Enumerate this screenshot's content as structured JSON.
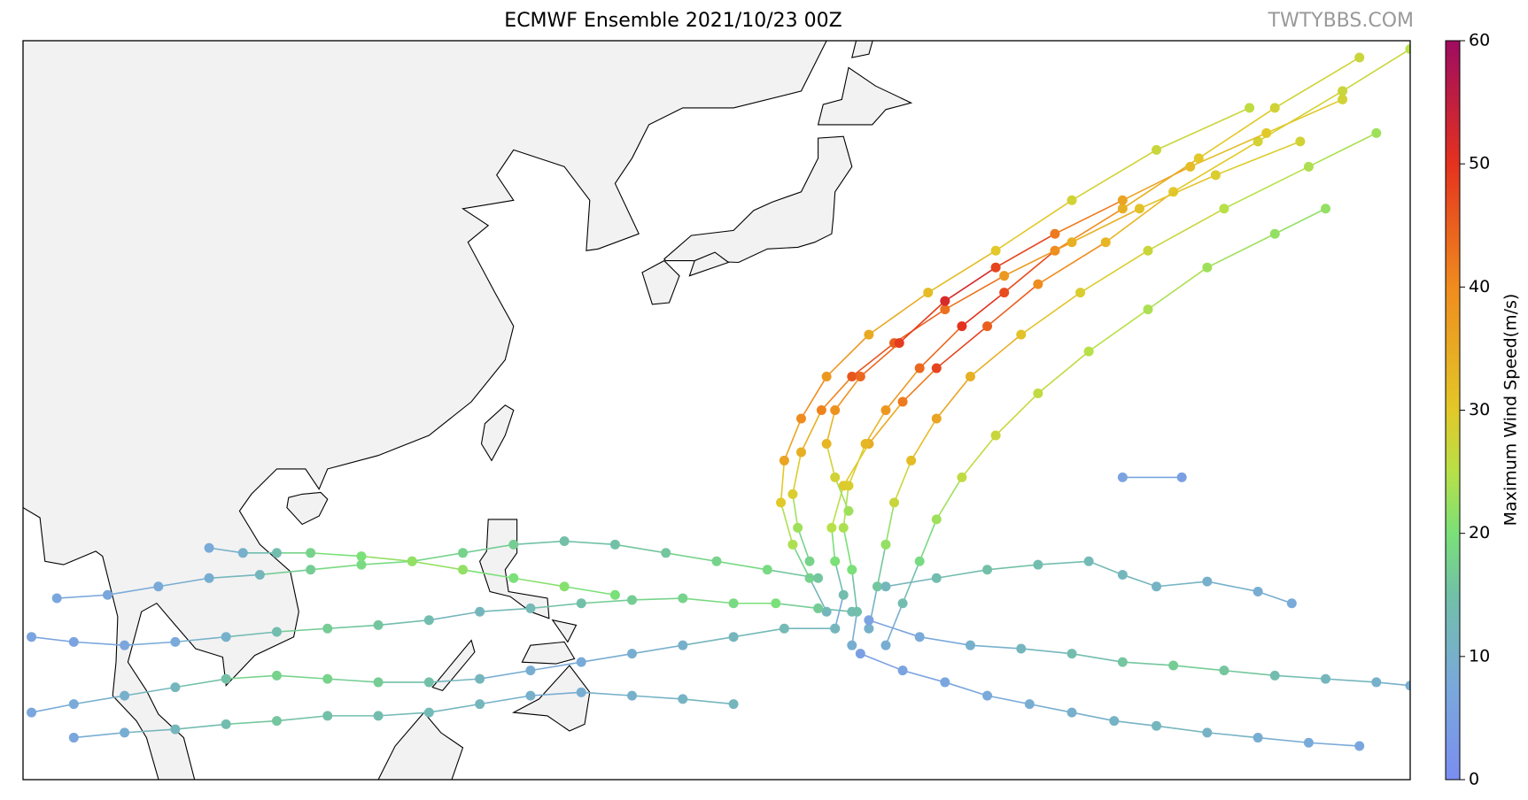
{
  "title": "ECMWF Ensemble 2021/10/23 00Z",
  "watermark": "TWTYBBS.COM",
  "colorbar": {
    "label": "Maximum Wind Speed(m/s)",
    "lim": [
      0,
      60
    ],
    "ticks": [
      0,
      10,
      20,
      30,
      40,
      50,
      60
    ],
    "color_stops": [
      [
        0,
        "#7a8ef0"
      ],
      [
        7.5,
        "#7aa8dc"
      ],
      [
        15,
        "#72c0a8"
      ],
      [
        20,
        "#7ae078"
      ],
      [
        25,
        "#b8e048"
      ],
      [
        30,
        "#e2c828"
      ],
      [
        40,
        "#ef8c1e"
      ],
      [
        50,
        "#e4321e"
      ],
      [
        60,
        "#9e0c60"
      ]
    ]
  },
  "tracks": [
    {
      "points": [
        [
          141,
          12,
          8
        ],
        [
          141.5,
          14,
          14
        ],
        [
          141,
          16,
          20
        ],
        [
          140.8,
          18,
          25
        ],
        [
          141.5,
          20.5,
          30
        ],
        [
          143,
          23,
          35
        ],
        [
          145,
          25.5,
          42
        ],
        [
          147,
          27.5,
          48
        ],
        [
          150,
          30,
          45
        ],
        [
          153,
          32.5,
          40
        ],
        [
          157,
          35,
          33
        ],
        [
          161,
          38,
          30
        ],
        [
          166,
          41,
          28
        ],
        [
          171,
          44,
          27
        ],
        [
          175,
          46.5,
          25
        ]
      ]
    },
    {
      "points": [
        [
          142,
          11,
          9
        ],
        [
          142.3,
          13,
          15
        ],
        [
          142,
          15.5,
          20
        ],
        [
          141.5,
          18,
          24
        ],
        [
          141.8,
          20.5,
          29
        ],
        [
          142.8,
          23,
          33
        ],
        [
          144,
          25,
          38
        ],
        [
          146,
          27.5,
          44
        ],
        [
          148.5,
          30,
          50
        ],
        [
          151,
          32,
          47
        ],
        [
          154,
          34.5,
          40
        ],
        [
          158,
          37,
          34
        ],
        [
          162.5,
          40,
          30
        ],
        [
          167,
          43,
          28
        ],
        [
          172,
          46,
          27
        ]
      ]
    },
    {
      "points": [
        [
          140.5,
          13,
          12
        ],
        [
          139.5,
          15,
          18
        ],
        [
          138.5,
          17,
          24
        ],
        [
          137.8,
          19.5,
          30
        ],
        [
          138,
          22,
          36
        ],
        [
          139,
          24.5,
          40
        ],
        [
          140.5,
          27,
          38
        ],
        [
          143,
          29.5,
          35
        ],
        [
          146.5,
          32,
          32
        ],
        [
          150.5,
          34.5,
          30
        ],
        [
          155,
          37.5,
          28
        ],
        [
          160,
          40.5,
          27
        ],
        [
          165.5,
          43,
          26
        ]
      ]
    },
    {
      "points": [
        [
          143,
          12,
          10
        ],
        [
          143.5,
          14.5,
          16
        ],
        [
          144,
          17,
          22
        ],
        [
          144.5,
          19.5,
          27
        ],
        [
          145.5,
          22,
          32
        ],
        [
          147,
          24.5,
          36
        ],
        [
          149,
          27,
          34
        ],
        [
          152,
          29.5,
          31
        ],
        [
          155.5,
          32,
          29
        ],
        [
          159.5,
          34.5,
          27
        ],
        [
          164,
          37,
          25
        ],
        [
          169,
          39.5,
          24
        ],
        [
          173,
          41.5,
          23
        ]
      ]
    },
    {
      "points": [
        [
          144,
          11,
          9
        ],
        [
          145,
          13.5,
          14
        ],
        [
          146,
          16,
          19
        ],
        [
          147,
          18.5,
          23
        ],
        [
          148.5,
          21,
          26
        ],
        [
          150.5,
          23.5,
          27
        ],
        [
          153,
          26,
          26
        ],
        [
          156,
          28.5,
          25
        ],
        [
          159.5,
          31,
          24
        ],
        [
          163,
          33.5,
          23
        ],
        [
          167,
          35.5,
          22
        ],
        [
          170,
          37,
          22
        ]
      ]
    },
    {
      "points": [
        [
          142,
          13,
          14
        ],
        [
          140,
          13.2,
          17
        ],
        [
          137.5,
          13.5,
          20
        ],
        [
          135,
          13.5,
          19
        ],
        [
          132,
          13.8,
          18
        ],
        [
          129,
          13.7,
          17
        ],
        [
          126,
          13.5,
          15
        ],
        [
          123,
          13.2,
          13
        ],
        [
          120,
          13,
          12
        ],
        [
          117,
          12.5,
          14
        ],
        [
          114,
          12.2,
          16
        ],
        [
          111,
          12,
          17
        ],
        [
          108,
          11.8,
          14
        ],
        [
          105,
          11.5,
          10
        ],
        [
          102,
          11.2,
          8
        ],
        [
          99,
          11,
          7
        ],
        [
          96,
          11.2,
          6
        ],
        [
          93.5,
          11.5,
          6
        ]
      ]
    },
    {
      "points": [
        [
          141,
          12,
          12
        ],
        [
          138,
          12,
          13
        ],
        [
          135,
          11.5,
          12
        ],
        [
          132,
          11,
          10
        ],
        [
          129,
          10.5,
          9
        ],
        [
          126,
          10,
          8
        ],
        [
          123,
          9.5,
          9
        ],
        [
          120,
          9,
          12
        ],
        [
          117,
          8.8,
          15
        ],
        [
          114,
          8.8,
          17
        ],
        [
          111,
          9,
          18
        ],
        [
          108,
          9.2,
          18
        ],
        [
          105,
          9,
          15
        ],
        [
          102,
          8.5,
          12
        ],
        [
          99,
          8,
          10
        ],
        [
          96,
          7.5,
          8
        ],
        [
          93.5,
          7,
          7
        ]
      ]
    },
    {
      "points": [
        [
          140,
          15,
          16
        ],
        [
          137,
          15.5,
          19
        ],
        [
          134,
          16,
          18
        ],
        [
          131,
          16.5,
          16
        ],
        [
          128,
          17,
          15
        ],
        [
          125,
          17.2,
          15
        ],
        [
          122,
          17,
          17
        ],
        [
          119,
          16.5,
          18
        ],
        [
          116,
          16,
          19
        ],
        [
          113,
          15.8,
          19
        ],
        [
          110,
          15.5,
          17
        ],
        [
          107,
          15.2,
          12
        ],
        [
          104,
          15,
          9
        ],
        [
          101,
          14.5,
          8
        ],
        [
          98,
          14,
          7
        ],
        [
          95,
          13.8,
          7
        ]
      ]
    },
    {
      "points": [
        [
          143,
          12.5,
          6
        ],
        [
          146,
          11.5,
          8
        ],
        [
          149,
          11,
          10
        ],
        [
          152,
          10.8,
          12
        ],
        [
          155,
          10.5,
          14
        ],
        [
          158,
          10,
          16
        ],
        [
          161,
          9.8,
          17
        ],
        [
          164,
          9.5,
          16
        ],
        [
          167,
          9.2,
          14
        ],
        [
          170,
          9,
          12
        ],
        [
          173,
          8.8,
          10
        ],
        [
          175,
          8.6,
          9
        ]
      ]
    },
    {
      "points": [
        [
          142.5,
          10.5,
          5
        ],
        [
          145,
          9.5,
          6
        ],
        [
          147.5,
          8.8,
          7
        ],
        [
          150,
          8,
          8
        ],
        [
          152.5,
          7.5,
          9
        ],
        [
          155,
          7,
          10
        ],
        [
          157.5,
          6.5,
          11
        ],
        [
          160,
          6.2,
          12
        ],
        [
          163,
          5.8,
          11
        ],
        [
          166,
          5.5,
          9
        ],
        [
          169,
          5.2,
          8
        ],
        [
          172,
          5,
          7
        ]
      ]
    },
    {
      "points": [
        [
          144,
          14.5,
          12
        ],
        [
          147,
          15,
          14
        ],
        [
          150,
          15.5,
          15
        ],
        [
          153,
          15.8,
          14
        ],
        [
          156,
          16,
          13
        ],
        [
          158,
          15.2,
          12
        ],
        [
          160,
          14.5,
          11
        ],
        [
          163,
          14.8,
          10
        ],
        [
          166,
          14.2,
          9
        ],
        [
          168,
          13.5,
          8
        ]
      ]
    },
    {
      "points": [
        [
          158,
          21,
          6
        ],
        [
          161.5,
          21,
          5
        ]
      ]
    },
    {
      "points": [
        [
          139.5,
          16,
          18
        ],
        [
          138.8,
          18,
          23
        ],
        [
          138.5,
          20,
          29
        ],
        [
          139,
          22.5,
          34
        ],
        [
          140.2,
          25,
          41
        ],
        [
          142,
          27,
          46
        ],
        [
          144.5,
          29,
          45
        ],
        [
          147.5,
          31,
          43
        ],
        [
          151,
          33,
          38
        ],
        [
          155,
          35,
          34
        ],
        [
          159,
          37,
          31
        ],
        [
          163.5,
          39,
          29
        ],
        [
          168.5,
          41,
          28
        ]
      ]
    },
    {
      "points": [
        [
          128,
          14,
          20
        ],
        [
          125,
          14.5,
          21
        ],
        [
          122,
          15,
          20
        ],
        [
          119,
          15.5,
          22
        ],
        [
          116,
          16,
          22
        ],
        [
          113,
          16.3,
          20
        ],
        [
          110,
          16.5,
          18
        ],
        [
          108,
          16.5,
          14
        ],
        [
          106,
          16.5,
          10
        ],
        [
          104,
          16.8,
          8
        ]
      ]
    },
    {
      "points": [
        [
          135,
          7.5,
          12
        ],
        [
          132,
          7.8,
          11
        ],
        [
          129,
          8,
          10
        ],
        [
          126,
          8.2,
          9
        ],
        [
          123,
          8,
          10
        ],
        [
          120,
          7.5,
          12
        ],
        [
          117,
          7,
          13
        ],
        [
          114,
          6.8,
          14
        ],
        [
          111,
          6.8,
          15
        ],
        [
          108,
          6.5,
          16
        ],
        [
          105,
          6.3,
          14
        ],
        [
          102,
          6,
          12
        ],
        [
          99,
          5.8,
          9
        ],
        [
          96,
          5.5,
          7
        ]
      ]
    },
    {
      "points": [
        [
          141.8,
          19,
          23
        ],
        [
          141,
          21,
          28
        ],
        [
          140.5,
          23,
          33
        ],
        [
          141,
          25,
          39
        ],
        [
          142.5,
          27,
          44
        ],
        [
          144.8,
          29,
          49
        ],
        [
          147.5,
          31.5,
          52
        ],
        [
          150.5,
          33.5,
          48
        ],
        [
          154,
          35.5,
          42
        ],
        [
          158,
          37.5,
          36
        ],
        [
          162,
          39.5,
          32
        ],
        [
          166.5,
          41.5,
          30
        ],
        [
          171,
          43.5,
          28
        ]
      ]
    }
  ]
}
